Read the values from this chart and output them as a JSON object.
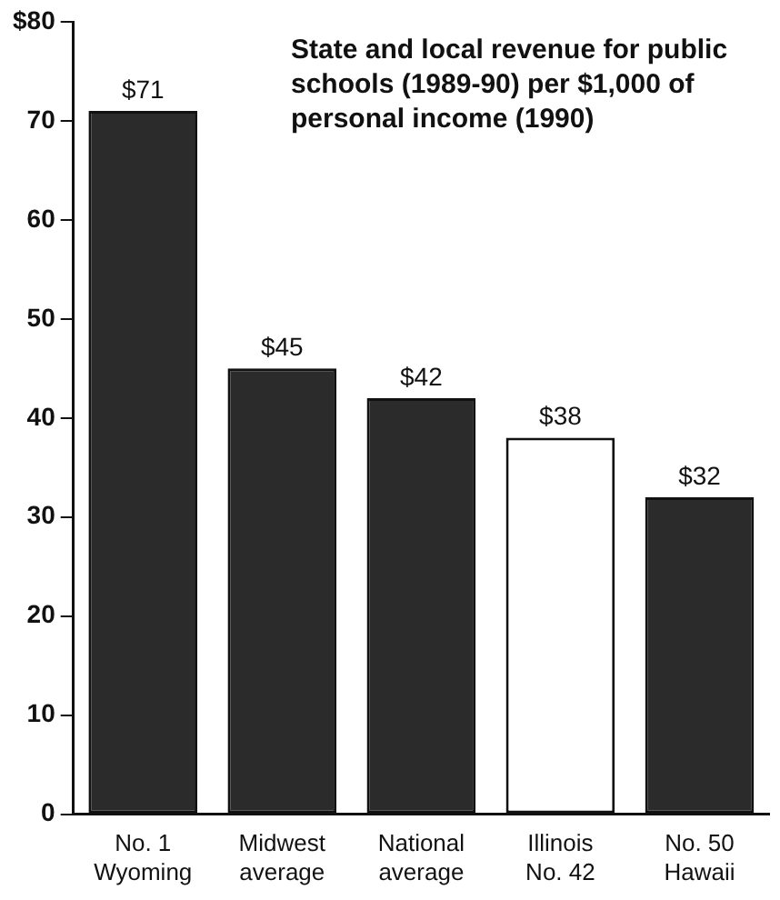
{
  "chart_data": {
    "type": "bar",
    "title": "State and local revenue for public schools (1989-90) per $1,000 of personal income (1990)",
    "categories": [
      "No. 1\nWyoming",
      "Midwest\naverage",
      "National\naverage",
      "Illinois\nNo. 42",
      "No. 50\nHawaii"
    ],
    "values": [
      71,
      45,
      42,
      38,
      32
    ],
    "colors": [
      "#2b2b2b",
      "#2b2b2b",
      "#2b2b2b",
      "#ffffff",
      "#2b2b2b"
    ],
    "value_labels": [
      "$71",
      "$45",
      "$42",
      "$38",
      "$32"
    ],
    "ylim": [
      0,
      80
    ],
    "yticks": [
      0,
      10,
      20,
      30,
      40,
      50,
      60,
      70,
      {
        "value": 80,
        "label": "$80"
      }
    ],
    "grid": false,
    "legend": false
  }
}
